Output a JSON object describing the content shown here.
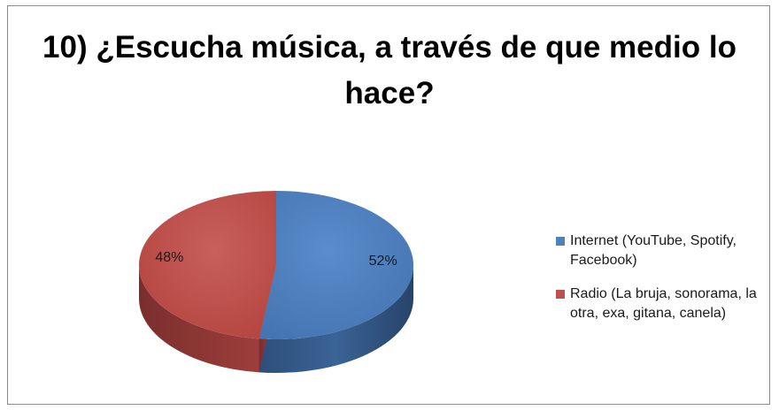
{
  "chart_data": {
    "type": "pie",
    "title": "10) ¿Escucha música, a través de que medio lo hace?",
    "categories": [
      "Internet (YouTube, Spotify, Facebook)",
      "Radio (La bruja, sonorama, la otra, exa, gitana, canela)"
    ],
    "values": [
      52,
      48
    ],
    "labels": [
      "52%",
      "48%"
    ],
    "colors": [
      "#4f81bd",
      "#c0504d"
    ],
    "legend_position": "right",
    "style": "3d"
  }
}
